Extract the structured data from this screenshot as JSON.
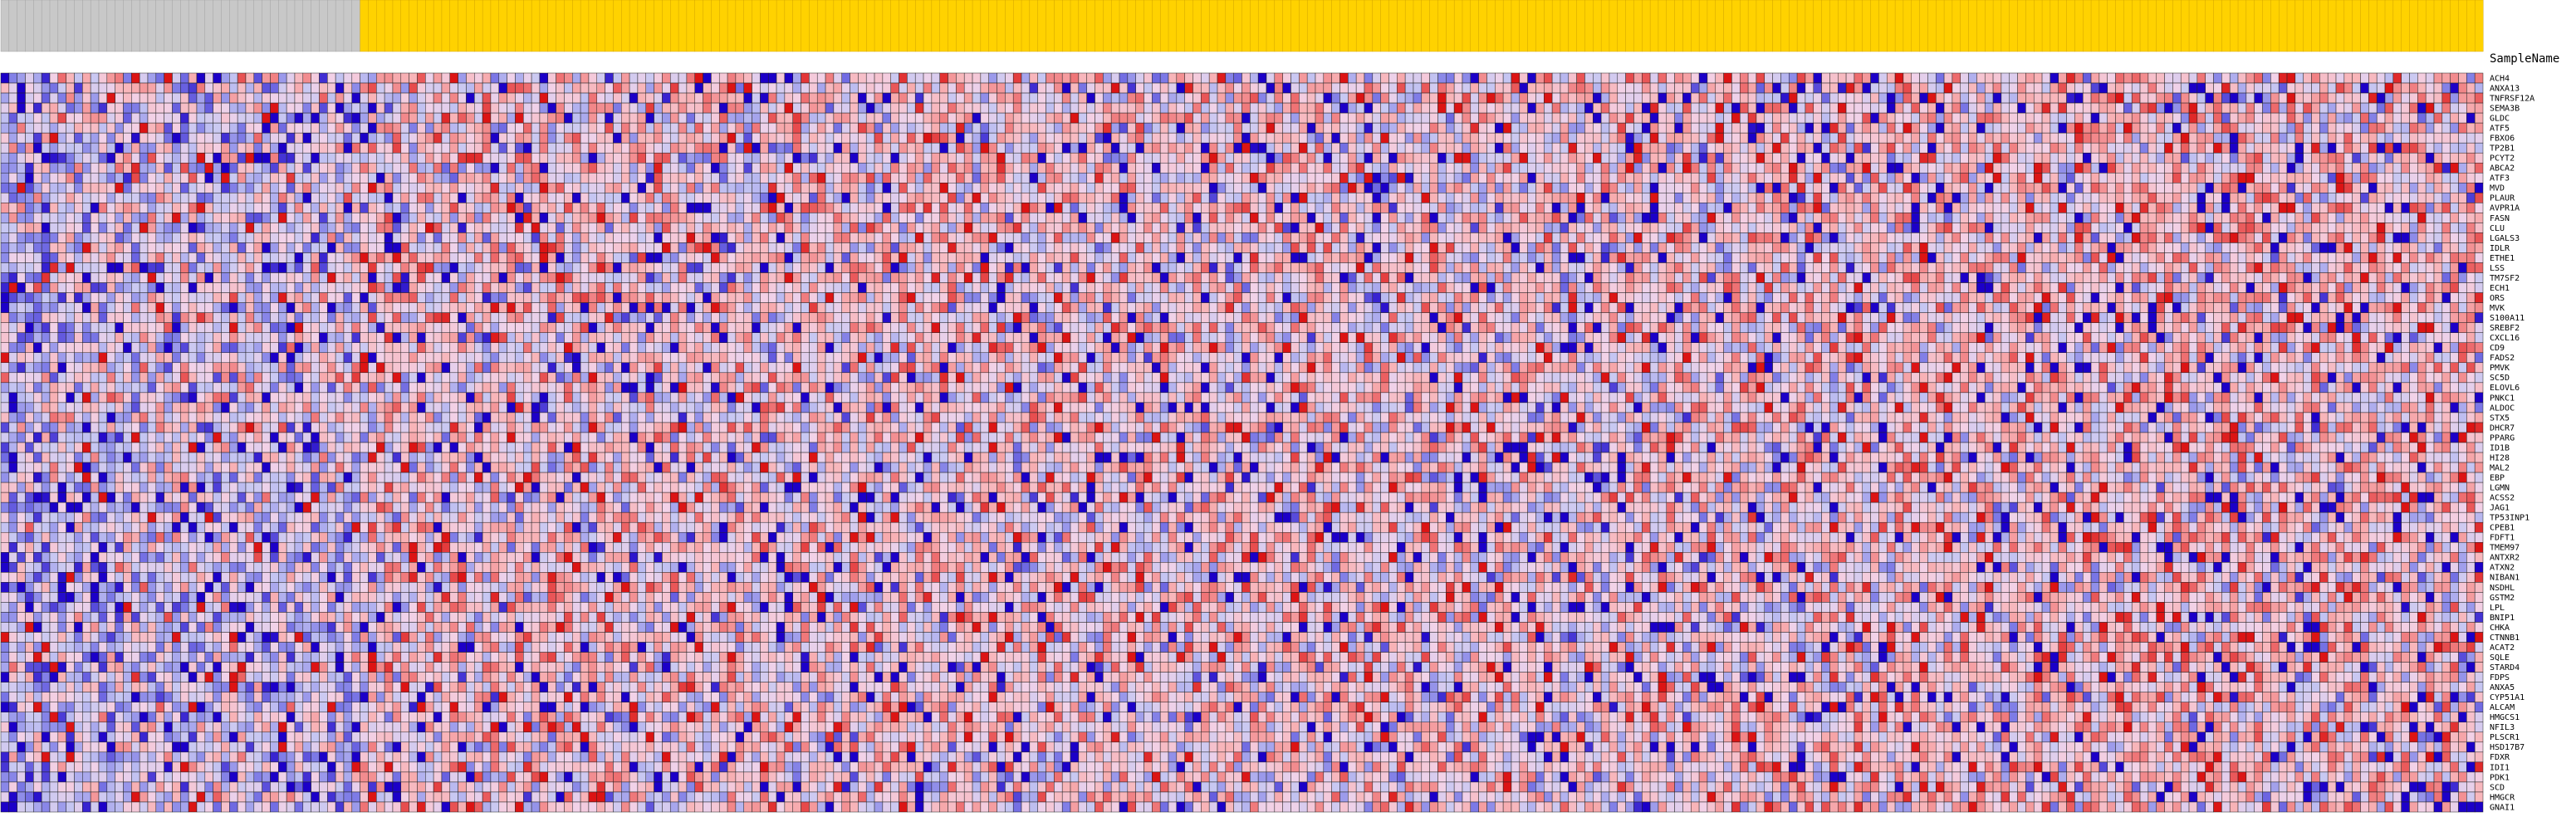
{
  "chart_data": {
    "type": "heatmap",
    "title": "",
    "row_header_label": "SampleName",
    "n_columns": 304,
    "n_columns_grey": 44,
    "sample_names": [],
    "gene_names": [
      "ACH4",
      "ANXA13",
      "TNFRSF12A",
      "SEMA3B",
      "GLDC",
      "ATF5",
      "FBXO6",
      "TP2B1",
      "PCYT2",
      "ABCA2",
      "ATF3",
      "MVD",
      "PLAUR",
      "AVPR1A",
      "FASN",
      "CLU",
      "LGALS3",
      "IDLR",
      "ETHE1",
      "LSS",
      "TM7SF2",
      "ECH1",
      "ORS",
      "MVK",
      "S100A11",
      "SREBF2",
      "CXCL16",
      "CD9",
      "FADS2",
      "PMVK",
      "SC5D",
      "ELOVL6",
      "PNKC1",
      "ALDOC",
      "STX5",
      "DHCR7",
      "PPARG",
      "ID1B",
      "HI28",
      "MAL2",
      "EBP",
      "LGMN",
      "ACSS2",
      "JAG1",
      "TP53INP1",
      "CPEB1",
      "FDFT1",
      "TMEM97",
      "ANTXR2",
      "ATXN2",
      "NIBAN1",
      "NSDHL",
      "GSTM2",
      "LPL",
      "BNIP1",
      "CHKA",
      "CTNNB1",
      "ACAT2",
      "SQLE",
      "STARD4",
      "FDPS",
      "ANXA5",
      "CYP51A1",
      "ALCAM",
      "HMGCS1",
      "NFIL3",
      "PLSCR1",
      "HSD17B7",
      "FDXR",
      "IDI1",
      "PDK1",
      "SCD",
      "HMGCR",
      "GNAI1"
    ],
    "value_range": [
      -3,
      3
    ],
    "colormap": {
      "negative_strong": "#1c00c8",
      "negative_mid": "#7c79e6",
      "negative_light": "#c8c8f2",
      "neutral": "#f2d2e8",
      "positive_light": "#f8b4b8",
      "positive_mid": "#ee6e70",
      "positive_strong": "#dc1414"
    },
    "header_colors": {
      "group_a": "#c8c8c8",
      "group_b": "#ffd200"
    },
    "seed": 20240611
  }
}
